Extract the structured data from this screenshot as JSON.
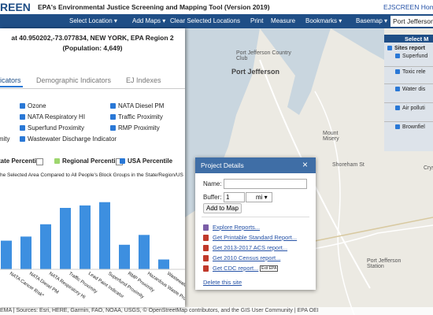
{
  "header": {
    "logo": "REEN",
    "title": "EPA's Environmental Justice Screening and Mapping Tool (Version 2019)",
    "home": "EJSCREEN Home"
  },
  "toolbar": {
    "items": [
      "Select Location",
      "Add Maps",
      "Clear Selected Locations",
      "Print",
      "Measure",
      "Bookmarks",
      "Basemap"
    ],
    "search": "Port Jefferson"
  },
  "panel": {
    "heading": "at 40.950202,-73.077834, NEW YORK, EPA Region 2 (Population: 4,649)",
    "tabs": [
      "icators",
      "Demographic Indicators",
      "EJ Indexes"
    ],
    "indicators": [
      "Ozone",
      "NATA Diesel PM",
      "NATA Respiratory HI",
      "Traffic Proximity",
      "Superfund Proximity",
      "RMP Proximity",
      "ximity",
      "Wastewater Discharge Indicator"
    ],
    "legend": [
      "tate Percentile",
      "Regional Percentile",
      "USA Percentile"
    ],
    "chart": {
      "type": "bar",
      "title": "he Selected Area Compared to All People's Block Groups in the State/Region/US",
      "categories": [
        "NATA Cancer Risk*",
        "NATA Diesel PM",
        "NATA Respiratory HI",
        "Traffic Proximity",
        "Lead Paint Indicator",
        "Superfund Proximity",
        "RMP Proximity",
        "Hazardous Waste Proximity",
        "Wastewater Discharge Indicator"
      ],
      "values": [
        35,
        40,
        55,
        75,
        78,
        82,
        30,
        42,
        12
      ],
      "ylim": [
        0,
        100
      ],
      "color": "#3d8fe0"
    }
  },
  "layers": {
    "title": "Select M",
    "items": [
      "Sites report",
      "Superfund",
      "Toxic rele",
      "Water dis",
      "Air polluti",
      "Brownfiel"
    ]
  },
  "popup": {
    "title": "Project Details",
    "name_label": "Name:",
    "buffer_label": "Buffer:",
    "buffer_value": "1",
    "buffer_unit": "mi",
    "button": "Add to Map",
    "links": [
      "Explore Reports...",
      "Get Printable Standard Report...",
      "Get 2013-2017 ACS report...",
      "Get 2010 Census report...",
      "Get CDC report..."
    ],
    "exit": "Exit EPA",
    "delete": "Delete this site"
  },
  "map_labels": [
    "Port Jefferson Country Club",
    "Port Jefferson",
    "Mount Misery",
    "Shoreham St",
    "Port Jefferson Station",
    "Cryst"
  ],
  "attribution": "EMA | Sources: Esri, HERE, Garmin, FAO, NOAA, USGS, © OpenStreetMap contributors, and the GIS User Community | EPA OEI"
}
